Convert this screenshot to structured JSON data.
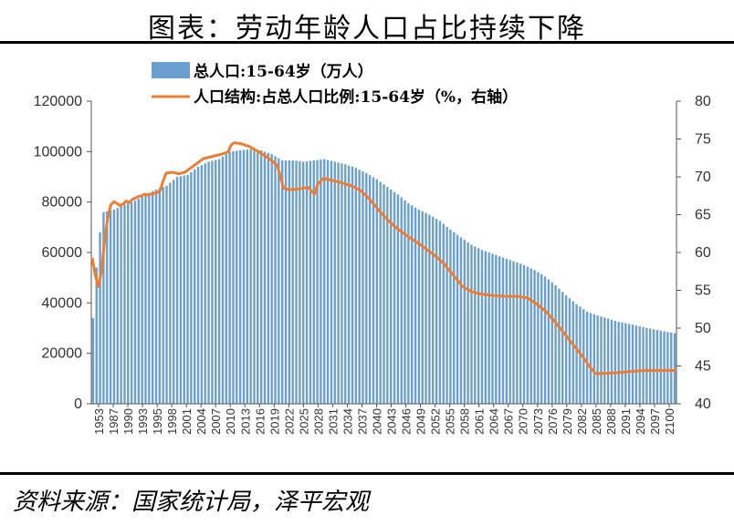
{
  "title": "图表：劳动年龄人口占比持续下降",
  "source": "资料来源：国家统计局，泽平宏观",
  "colors": {
    "bar": "#6a9fd0",
    "line": "#ed7d31",
    "axis": "#555555"
  },
  "chart_data": {
    "type": "bar",
    "legend_position": "top-left",
    "grid": false,
    "series": [
      {
        "name": "总人口:15-64岁（万人）",
        "type": "bar",
        "axis": "left"
      },
      {
        "name": "人口结构:占总人口比例:15-64岁（%，右轴）",
        "type": "line",
        "axis": "right"
      }
    ],
    "x_tick_labels": [
      "1953",
      "1987",
      "1990",
      "1993",
      "1995",
      "1998",
      "2001",
      "2004",
      "2007",
      "2010",
      "2013",
      "2016",
      "2019",
      "2022",
      "2025",
      "2028",
      "2031",
      "2034",
      "2037",
      "2040",
      "2043",
      "2046",
      "2049",
      "2052",
      "2055",
      "2058",
      "2061",
      "2064",
      "2067",
      "2070",
      "2073",
      "2076",
      "2079",
      "2082",
      "2085",
      "2088",
      "2091",
      "2094",
      "2097",
      "2100"
    ],
    "ylim_left": [
      0,
      120000
    ],
    "yticks_left": [
      "0",
      "20000",
      "40000",
      "60000",
      "80000",
      "100000",
      "120000"
    ],
    "ylim_right": [
      40,
      80
    ],
    "yticks_right": [
      "40",
      "45",
      "50",
      "55",
      "60",
      "65",
      "70",
      "75",
      "80"
    ],
    "bar_anchors": [
      [
        0,
        34000
      ],
      [
        1,
        54000
      ],
      [
        2,
        68000
      ],
      [
        3,
        76000
      ],
      [
        6,
        77000
      ],
      [
        9,
        79000
      ],
      [
        12,
        80500
      ],
      [
        15,
        83000
      ],
      [
        18,
        85000
      ],
      [
        21,
        86500
      ],
      [
        24,
        90000
      ],
      [
        27,
        90800
      ],
      [
        30,
        94000
      ],
      [
        33,
        96000
      ],
      [
        36,
        97000
      ],
      [
        39,
        100000
      ],
      [
        42,
        100500
      ],
      [
        45,
        101000
      ],
      [
        48,
        100500
      ],
      [
        51,
        99000
      ],
      [
        54,
        96500
      ],
      [
        57,
        96500
      ],
      [
        60,
        96000
      ],
      [
        63,
        96500
      ],
      [
        66,
        97000
      ],
      [
        69,
        96000
      ],
      [
        72,
        95000
      ],
      [
        75,
        93500
      ],
      [
        78,
        91500
      ],
      [
        81,
        89000
      ],
      [
        84,
        86000
      ],
      [
        87,
        83000
      ],
      [
        90,
        79500
      ],
      [
        93,
        77000
      ],
      [
        96,
        75000
      ],
      [
        99,
        72500
      ],
      [
        102,
        69000
      ],
      [
        105,
        66000
      ],
      [
        108,
        63000
      ],
      [
        111,
        61000
      ],
      [
        114,
        59500
      ],
      [
        117,
        58000
      ],
      [
        120,
        56500
      ],
      [
        123,
        55000
      ],
      [
        126,
        53000
      ],
      [
        129,
        50500
      ],
      [
        132,
        47000
      ],
      [
        135,
        43000
      ],
      [
        138,
        39500
      ],
      [
        141,
        36500
      ],
      [
        144,
        35000
      ],
      [
        147,
        33800
      ],
      [
        150,
        32500
      ],
      [
        153,
        31700
      ],
      [
        156,
        30700
      ],
      [
        159,
        29800
      ],
      [
        162,
        29000
      ],
      [
        165,
        28200
      ],
      [
        166,
        28000
      ]
    ],
    "line_anchors": [
      [
        0,
        59.3
      ],
      [
        1,
        57.0
      ],
      [
        2,
        55.5
      ],
      [
        3,
        57.5
      ],
      [
        4,
        61.5
      ],
      [
        5,
        64.5
      ],
      [
        6,
        66.3
      ],
      [
        7,
        66.7
      ],
      [
        8,
        66.5
      ],
      [
        9,
        66.2
      ],
      [
        10,
        66.4
      ],
      [
        11,
        66.8
      ],
      [
        12,
        66.6
      ],
      [
        13,
        67.0
      ],
      [
        14,
        67.2
      ],
      [
        15,
        67.4
      ],
      [
        16,
        67.5
      ],
      [
        17,
        67.7
      ],
      [
        18,
        67.6
      ],
      [
        19,
        67.7
      ],
      [
        20,
        67.8
      ],
      [
        21,
        67.9
      ],
      [
        22,
        68.2
      ],
      [
        23,
        69.5
      ],
      [
        24,
        70.5
      ],
      [
        26,
        70.6
      ],
      [
        28,
        70.4
      ],
      [
        30,
        70.6
      ],
      [
        33,
        71.5
      ],
      [
        36,
        72.4
      ],
      [
        39,
        72.7
      ],
      [
        42,
        73.0
      ],
      [
        44,
        73.3
      ],
      [
        45,
        74.2
      ],
      [
        46,
        74.5
      ],
      [
        48,
        74.4
      ],
      [
        51,
        74.0
      ],
      [
        54,
        73.3
      ],
      [
        57,
        72.5
      ],
      [
        60,
        71.5
      ],
      [
        62,
        68.5
      ],
      [
        64,
        68.3
      ],
      [
        67,
        68.4
      ],
      [
        70,
        68.6
      ],
      [
        72,
        67.7
      ],
      [
        73,
        69.0
      ],
      [
        75,
        69.8
      ],
      [
        78,
        69.5
      ],
      [
        81,
        69.2
      ],
      [
        84,
        68.8
      ],
      [
        87,
        68.2
      ],
      [
        90,
        67.0
      ],
      [
        93,
        65.5
      ],
      [
        96,
        64.2
      ],
      [
        99,
        63.1
      ],
      [
        102,
        62.2
      ],
      [
        105,
        61.4
      ],
      [
        108,
        60.5
      ],
      [
        111,
        59.6
      ],
      [
        114,
        58.5
      ],
      [
        117,
        57.0
      ],
      [
        120,
        55.5
      ],
      [
        123,
        54.8
      ],
      [
        126,
        54.5
      ],
      [
        130,
        54.3
      ],
      [
        134,
        54.2
      ],
      [
        138,
        54.2
      ],
      [
        141,
        54.0
      ],
      [
        144,
        53.2
      ],
      [
        147,
        52.2
      ],
      [
        150,
        50.8
      ],
      [
        153,
        49.3
      ],
      [
        156,
        47.7
      ],
      [
        159,
        46.2
      ],
      [
        161,
        45.0
      ],
      [
        162,
        44.5
      ],
      [
        163,
        44.0
      ],
      [
        165,
        44.0
      ],
      [
        170,
        44.1
      ],
      [
        175,
        44.3
      ],
      [
        180,
        44.4
      ],
      [
        185,
        44.4
      ],
      [
        189,
        44.4
      ]
    ]
  },
  "legend": {
    "bar_label": "总人口:15-64岁（万人）",
    "line_label": "人口结构:占总人口比例:15-64岁（%，右轴）"
  }
}
